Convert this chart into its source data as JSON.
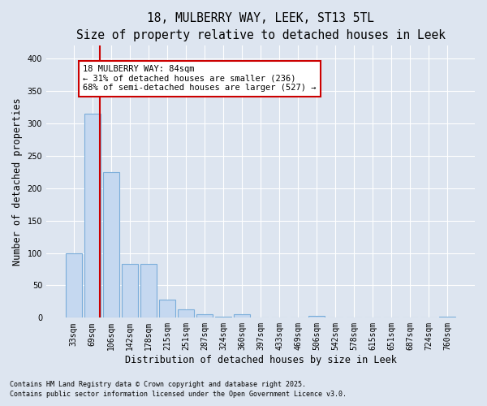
{
  "title1": "18, MULBERRY WAY, LEEK, ST13 5TL",
  "title2": "Size of property relative to detached houses in Leek",
  "xlabel": "Distribution of detached houses by size in Leek",
  "ylabel": "Number of detached properties",
  "categories": [
    "33sqm",
    "69sqm",
    "106sqm",
    "142sqm",
    "178sqm",
    "215sqm",
    "251sqm",
    "287sqm",
    "324sqm",
    "360sqm",
    "397sqm",
    "433sqm",
    "469sqm",
    "506sqm",
    "542sqm",
    "578sqm",
    "615sqm",
    "651sqm",
    "687sqm",
    "724sqm",
    "760sqm"
  ],
  "values": [
    100,
    315,
    225,
    83,
    83,
    28,
    13,
    5,
    2,
    5,
    0,
    0,
    0,
    3,
    0,
    0,
    0,
    0,
    0,
    0,
    2
  ],
  "bar_color": "#c5d8f0",
  "bar_edge_color": "#7aadda",
  "red_line_x": 1.4,
  "annotation_text": "18 MULBERRY WAY: 84sqm\n← 31% of detached houses are smaller (236)\n68% of semi-detached houses are larger (527) →",
  "annotation_box_color": "#ffffff",
  "annotation_box_edge_color": "#cc0000",
  "ylim": [
    0,
    420
  ],
  "yticks": [
    0,
    50,
    100,
    150,
    200,
    250,
    300,
    350,
    400
  ],
  "background_color": "#dde5f0",
  "grid_color": "#ffffff",
  "footer1": "Contains HM Land Registry data © Crown copyright and database right 2025.",
  "footer2": "Contains public sector information licensed under the Open Government Licence v3.0.",
  "title_fontsize": 10.5,
  "subtitle_fontsize": 9.5,
  "label_fontsize": 8.5,
  "tick_fontsize": 7,
  "ann_fontsize": 7.5
}
